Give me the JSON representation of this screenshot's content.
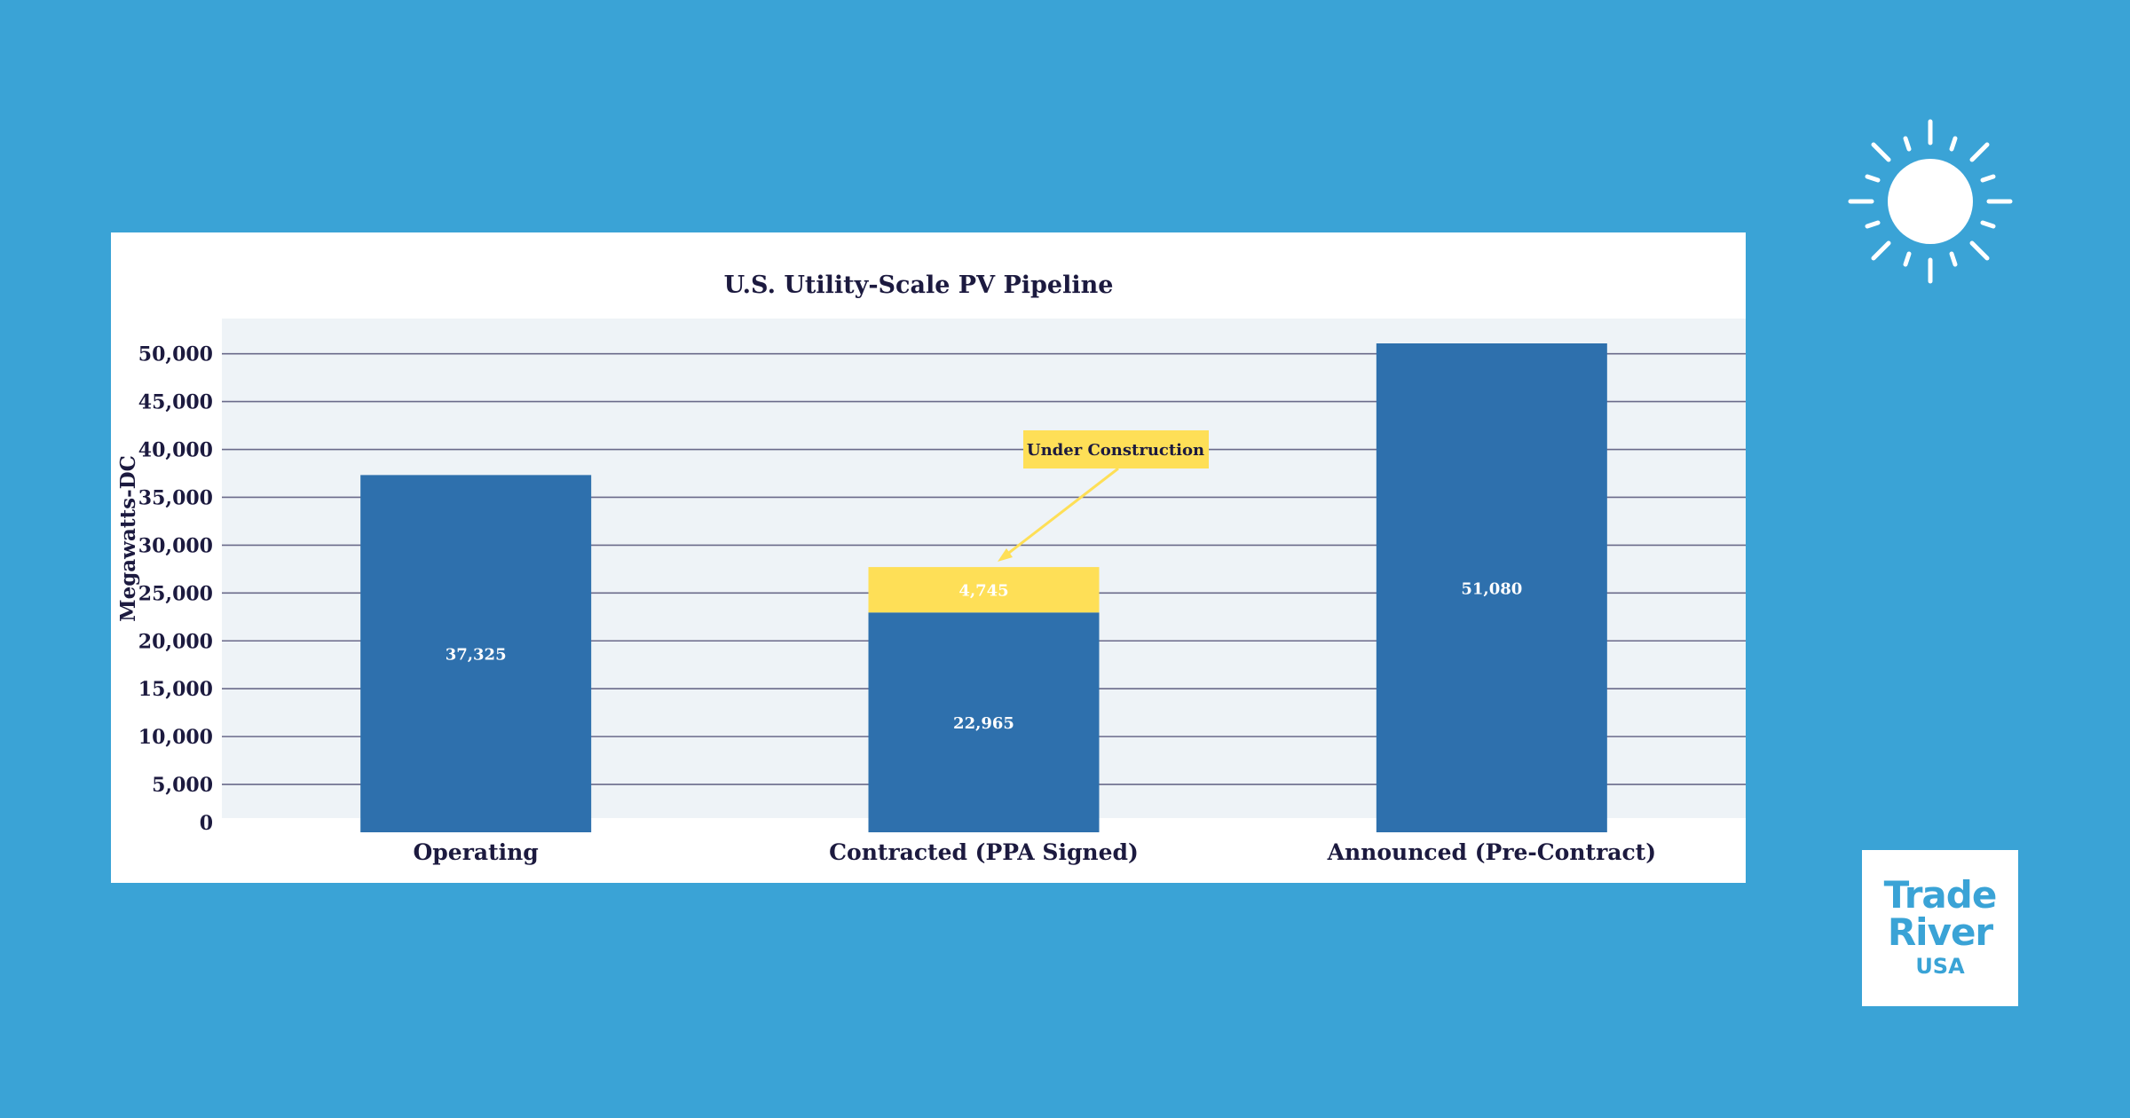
{
  "colors": {
    "background": "#3aa3d6",
    "bar_primary": "#2e70ad",
    "bar_highlight": "#fedf57",
    "plot_background": "#eef3f7",
    "text_dark": "#1c1a3f"
  },
  "logo": {
    "line1": "Trade",
    "line2": "River",
    "line3": "USA"
  },
  "decoration": {
    "icon": "sun-icon"
  },
  "chart_data": {
    "type": "bar",
    "stacked": true,
    "title": "U.S. Utility-Scale PV Pipeline",
    "ylabel": "Megawatts-DC",
    "xlabel": "",
    "ylim": [
      0,
      51080
    ],
    "yticks": [
      0,
      5000,
      10000,
      15000,
      20000,
      25000,
      30000,
      35000,
      40000,
      45000,
      50000
    ],
    "ytick_labels": [
      "0",
      "5,000",
      "10,000",
      "15,000",
      "20,000",
      "25,000",
      "30,000",
      "35,000",
      "40,000",
      "45,000",
      "50,000"
    ],
    "categories": [
      "Operating",
      "Contracted (PPA Signed)",
      "Announced (Pre-Contract)"
    ],
    "grid": true,
    "series": [
      {
        "values": [
          37325,
          22965,
          51080
        ],
        "labels": [
          "37,325",
          "22,965",
          "51,080"
        ],
        "color": "#2e70ad"
      },
      {
        "values": [
          0,
          4745,
          0
        ],
        "labels": [
          "",
          "4,745",
          ""
        ],
        "color": "#fedf57"
      }
    ],
    "annotations": [
      {
        "text": "Under Construction",
        "target_category": "Contracted (PPA Signed)"
      }
    ]
  }
}
